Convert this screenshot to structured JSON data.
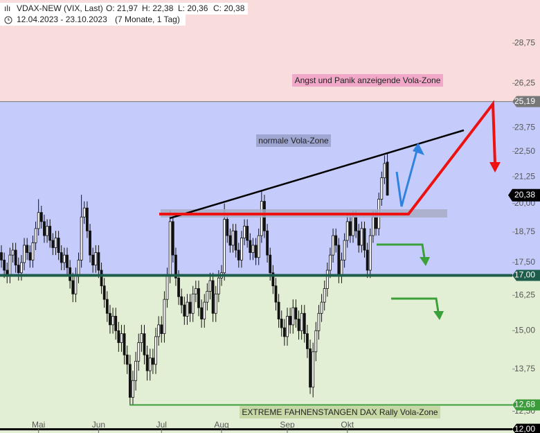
{
  "header": {
    "symbol": "VDAX-NEW (VIX, Last)",
    "open": "O: 21,97",
    "high": "H: 22,38",
    "low": "L: 20,36",
    "close": "C: 20,38",
    "period": "12.04.2023 - 23.10.2023",
    "duration": "(7 Monate, 1 Tag)"
  },
  "chart_data": {
    "type": "candlestick",
    "zone_labels": [
      "Angst und Panik anzeigende Vola-Zone",
      "normale Vola-Zone",
      "EXTREME FAHNENSTANGEN DAX Rally Vola-Zone"
    ],
    "categories": [
      null,
      null,
      null,
      null,
      null,
      null,
      null,
      null,
      null,
      null,
      null,
      null,
      null,
      "Mai",
      null,
      null,
      null,
      null,
      null,
      null,
      null,
      null,
      null,
      null,
      null,
      null,
      null,
      null,
      null,
      null,
      null,
      null,
      null,
      null,
      "Jun",
      null,
      null,
      null,
      null,
      null,
      null,
      null,
      null,
      null,
      null,
      null,
      null,
      null,
      null,
      null,
      null,
      null,
      null,
      null,
      null,
      null,
      "Jul",
      null,
      null,
      null,
      null,
      null,
      null,
      null,
      null,
      null,
      null,
      null,
      null,
      null,
      null,
      null,
      null,
      null,
      null,
      null,
      null,
      "Aug",
      null,
      null,
      null,
      null,
      null,
      null,
      null,
      null,
      null,
      null,
      null,
      null,
      null,
      null,
      null,
      null,
      null,
      null,
      null,
      null,
      null,
      null,
      "Sep",
      null,
      null,
      null,
      null,
      null,
      null,
      null,
      null,
      null,
      null,
      null,
      null,
      null,
      null,
      null,
      null,
      null,
      null,
      null,
      null,
      "Okt",
      null,
      null,
      null,
      null,
      null,
      null,
      null,
      null,
      null,
      null,
      null,
      null,
      null,
      null
    ],
    "open": [
      17.9,
      17.6,
      17.2,
      17.0,
      17.8,
      18.0,
      17.4,
      17.1,
      17.5,
      18.2,
      17.9,
      17.6,
      18.3,
      18.9,
      19.6,
      19.2,
      18.6,
      19.0,
      18.4,
      18.1,
      18.5,
      17.9,
      17.5,
      17.8,
      17.3,
      16.8,
      16.3,
      17.0,
      17.6,
      19.4,
      19.8,
      18.8,
      17.8,
      17.4,
      17.9,
      17.2,
      16.6,
      16.1,
      15.6,
      15.2,
      15.5,
      15.0,
      14.6,
      14.9,
      14.2,
      13.9,
      12.9,
      13.4,
      14.0,
      14.6,
      14.9,
      14.2,
      13.7,
      14.1,
      13.9,
      14.8,
      15.2,
      14.9,
      16.1,
      17.0,
      19.2,
      17.8,
      16.9,
      16.2,
      15.9,
      15.5,
      16.0,
      15.6,
      16.3,
      16.5,
      15.8,
      15.4,
      16.0,
      16.4,
      16.8,
      15.6,
      16.3,
      16.9,
      17.1,
      19.3,
      18.6,
      18.2,
      18.8,
      18.0,
      17.6,
      18.5,
      19.0,
      18.4,
      17.9,
      18.2,
      17.7,
      18.6,
      20.1,
      18.8,
      17.8,
      17.1,
      16.6,
      16.0,
      15.4,
      15.1,
      14.8,
      15.5,
      15.2,
      15.8,
      15.4,
      15.0,
      15.6,
      14.9,
      14.4,
      13.2,
      14.3,
      15.0,
      15.6,
      16.0,
      16.5,
      17.2,
      17.8,
      18.6,
      18.2,
      17.0,
      17.6,
      18.4,
      19.2,
      18.6,
      19.4,
      18.8,
      18.2,
      18.9,
      18.0,
      17.2,
      18.6,
      19.4,
      18.9,
      20.2,
      21.2,
      21.97
    ],
    "high": [
      18.2,
      17.9,
      17.5,
      18.1,
      18.3,
      18.3,
      17.7,
      17.8,
      18.5,
      18.5,
      18.2,
      18.6,
      19.2,
      20.2,
      19.9,
      19.5,
      19.3,
      19.3,
      18.7,
      18.8,
      18.8,
      18.2,
      18.1,
      18.1,
      17.6,
      17.1,
      17.3,
      17.9,
      20.4,
      20.1,
      20.1,
      19.1,
      18.1,
      18.2,
      18.2,
      17.5,
      16.9,
      16.4,
      15.9,
      15.8,
      15.8,
      15.3,
      15.2,
      15.2,
      14.5,
      14.2,
      13.7,
      14.3,
      14.9,
      15.2,
      15.2,
      14.5,
      14.4,
      14.4,
      15.1,
      15.5,
      15.5,
      16.4,
      17.3,
      19.7,
      19.5,
      18.1,
      17.2,
      16.5,
      16.2,
      16.3,
      16.3,
      16.6,
      16.8,
      16.8,
      16.1,
      16.3,
      16.7,
      17.1,
      17.1,
      16.6,
      17.2,
      17.4,
      20.0,
      19.6,
      18.9,
      19.1,
      19.1,
      18.3,
      18.8,
      19.3,
      19.3,
      18.7,
      18.5,
      18.5,
      18.9,
      20.6,
      20.4,
      19.1,
      18.1,
      17.4,
      16.9,
      16.3,
      15.7,
      15.4,
      15.8,
      15.8,
      16.1,
      16.1,
      15.7,
      15.9,
      15.9,
      15.2,
      14.7,
      14.6,
      15.3,
      15.9,
      16.3,
      16.8,
      17.5,
      18.1,
      18.9,
      18.9,
      18.5,
      17.9,
      18.7,
      19.5,
      19.5,
      19.7,
      19.7,
      19.1,
      19.2,
      19.2,
      18.3,
      18.9,
      19.7,
      19.7,
      20.5,
      21.5,
      22.3,
      22.38
    ],
    "low": [
      17.3,
      16.9,
      16.7,
      16.7,
      17.5,
      17.1,
      16.8,
      16.8,
      17.2,
      17.6,
      17.3,
      17.3,
      18.0,
      18.6,
      18.9,
      18.3,
      18.3,
      18.1,
      17.8,
      17.8,
      17.6,
      17.2,
      17.2,
      17.0,
      16.5,
      16.0,
      16.0,
      16.7,
      17.3,
      19.1,
      18.5,
      17.5,
      17.1,
      17.1,
      16.9,
      16.3,
      15.8,
      15.3,
      14.9,
      14.9,
      14.7,
      14.3,
      14.3,
      13.9,
      13.6,
      12.68,
      12.7,
      13.1,
      13.7,
      14.3,
      13.9,
      13.4,
      13.4,
      13.6,
      13.6,
      14.5,
      14.6,
      14.6,
      15.8,
      16.7,
      17.5,
      16.6,
      15.9,
      15.6,
      15.2,
      15.2,
      15.3,
      15.3,
      16.0,
      15.5,
      15.1,
      15.1,
      15.7,
      16.1,
      15.3,
      15.3,
      16.0,
      16.6,
      16.8,
      18.3,
      17.9,
      17.9,
      17.7,
      17.3,
      17.3,
      18.2,
      18.1,
      17.6,
      17.6,
      17.4,
      17.4,
      18.3,
      18.5,
      17.5,
      16.8,
      16.3,
      15.7,
      15.1,
      14.8,
      14.5,
      14.5,
      14.9,
      14.9,
      15.1,
      14.7,
      14.7,
      14.6,
      14.1,
      13.0,
      12.9,
      14.0,
      14.7,
      15.3,
      15.7,
      16.2,
      16.9,
      17.5,
      17.9,
      16.7,
      16.7,
      17.3,
      18.1,
      18.3,
      18.3,
      18.5,
      17.9,
      17.9,
      17.7,
      16.9,
      16.9,
      18.3,
      18.6,
      18.6,
      19.9,
      20.9,
      20.36
    ],
    "close": [
      17.6,
      17.2,
      17.0,
      17.8,
      18.0,
      17.4,
      17.1,
      17.5,
      18.2,
      17.9,
      17.6,
      18.3,
      18.9,
      19.6,
      19.2,
      18.6,
      19.0,
      18.4,
      18.1,
      18.5,
      17.9,
      17.5,
      17.8,
      17.3,
      16.8,
      16.3,
      17.0,
      17.6,
      19.4,
      19.8,
      18.8,
      17.8,
      17.4,
      17.9,
      17.2,
      16.6,
      16.1,
      15.6,
      15.2,
      15.5,
      15.0,
      14.6,
      14.9,
      14.2,
      13.9,
      12.9,
      13.4,
      14.0,
      14.6,
      14.9,
      14.2,
      13.7,
      14.1,
      13.9,
      14.8,
      15.2,
      14.9,
      16.1,
      17.0,
      19.2,
      17.8,
      16.9,
      16.2,
      15.9,
      15.5,
      16.0,
      15.6,
      16.3,
      16.5,
      15.8,
      15.4,
      16.0,
      16.4,
      16.8,
      15.6,
      16.3,
      16.9,
      17.1,
      19.3,
      18.6,
      18.2,
      18.8,
      18.0,
      17.6,
      18.5,
      19.0,
      18.4,
      17.9,
      18.2,
      17.7,
      18.6,
      20.1,
      18.8,
      17.8,
      17.1,
      16.6,
      16.0,
      15.4,
      15.1,
      14.8,
      15.5,
      15.2,
      15.8,
      15.4,
      15.0,
      15.6,
      14.9,
      14.4,
      13.2,
      14.3,
      15.0,
      15.6,
      16.0,
      16.5,
      17.2,
      17.8,
      18.6,
      18.2,
      17.0,
      17.6,
      18.4,
      19.2,
      18.6,
      19.4,
      18.8,
      18.2,
      18.9,
      18.0,
      17.2,
      18.6,
      19.4,
      18.9,
      20.2,
      21.2,
      21.9,
      20.38
    ],
    "color_up": "#ffffff",
    "color_down": "#111111",
    "zone_colors": [
      "#f9dcdc",
      "#c5ccfb",
      "#e3efd4"
    ],
    "log_scale": true,
    "grid": false,
    "ylim": [
      11.9,
      31.7
    ],
    "yticks": [
      {
        "value": 28.75,
        "label": "28,75"
      },
      {
        "value": 26.25,
        "label": "26,25"
      },
      {
        "value": 23.75,
        "label": "23,75"
      },
      {
        "value": 22.5,
        "label": "22,50"
      },
      {
        "value": 21.25,
        "label": "21,25"
      },
      {
        "value": 20,
        "label": "20,00"
      },
      {
        "value": 18.75,
        "label": "18,75"
      },
      {
        "value": 17.5,
        "label": "17,50"
      },
      {
        "value": 16.25,
        "label": "16,25"
      },
      {
        "value": 15,
        "label": "15,00"
      },
      {
        "value": 13.75,
        "label": "13,75"
      },
      {
        "value": 12.5,
        "label": "12,50"
      }
    ],
    "levels": [
      {
        "value": 25.19,
        "label": "25,19",
        "color": "#777777"
      },
      {
        "value": 17,
        "label": "17,00",
        "color": "#1e5c4c"
      },
      {
        "value": 12.68,
        "label": "12,68",
        "color": "#3c9c3c"
      },
      {
        "value": 12,
        "label": "12,00",
        "color": "#000000"
      }
    ],
    "last": {
      "value": 20.38,
      "label": "20,38",
      "color": "#000000"
    }
  }
}
